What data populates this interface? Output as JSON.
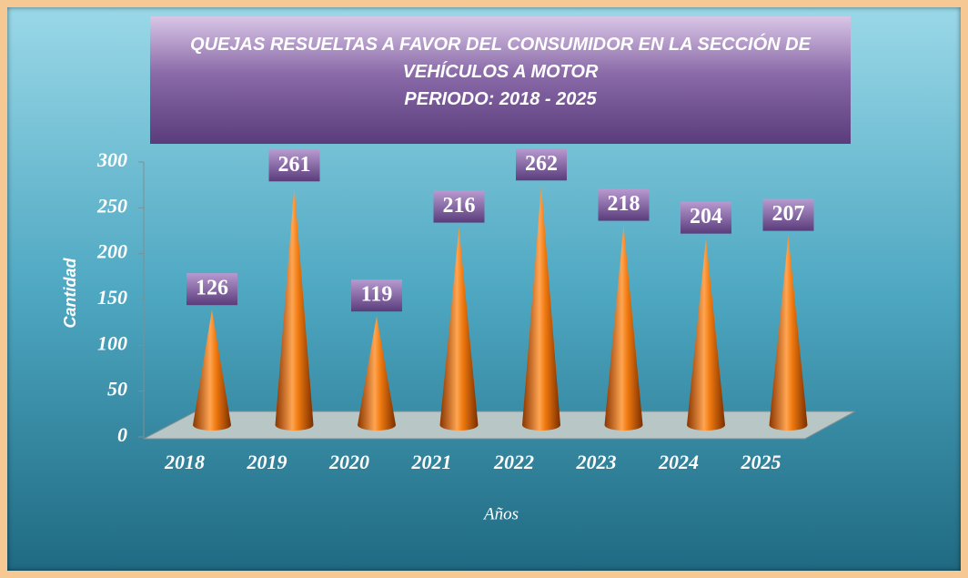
{
  "chart_data": {
    "type": "cone",
    "title": "QUEJAS RESUELTAS A FAVOR DEL CONSUMIDOR  EN LA SECCIÓN DE VEHÍCULOS A MOTOR",
    "subtitle": "PERIODO: 2018 - 2025",
    "x_label": "Años",
    "y_label": "Cantidad",
    "categories": [
      "2018",
      "2019",
      "2020",
      "2021",
      "2022",
      "2023",
      "2024",
      "2025"
    ],
    "values": [
      126,
      261,
      119,
      216,
      262,
      218,
      204,
      207
    ],
    "color": "#f07a10",
    "ylim": [
      0,
      300
    ],
    "yticks": [
      0,
      50,
      100,
      150,
      200,
      250,
      300
    ]
  }
}
